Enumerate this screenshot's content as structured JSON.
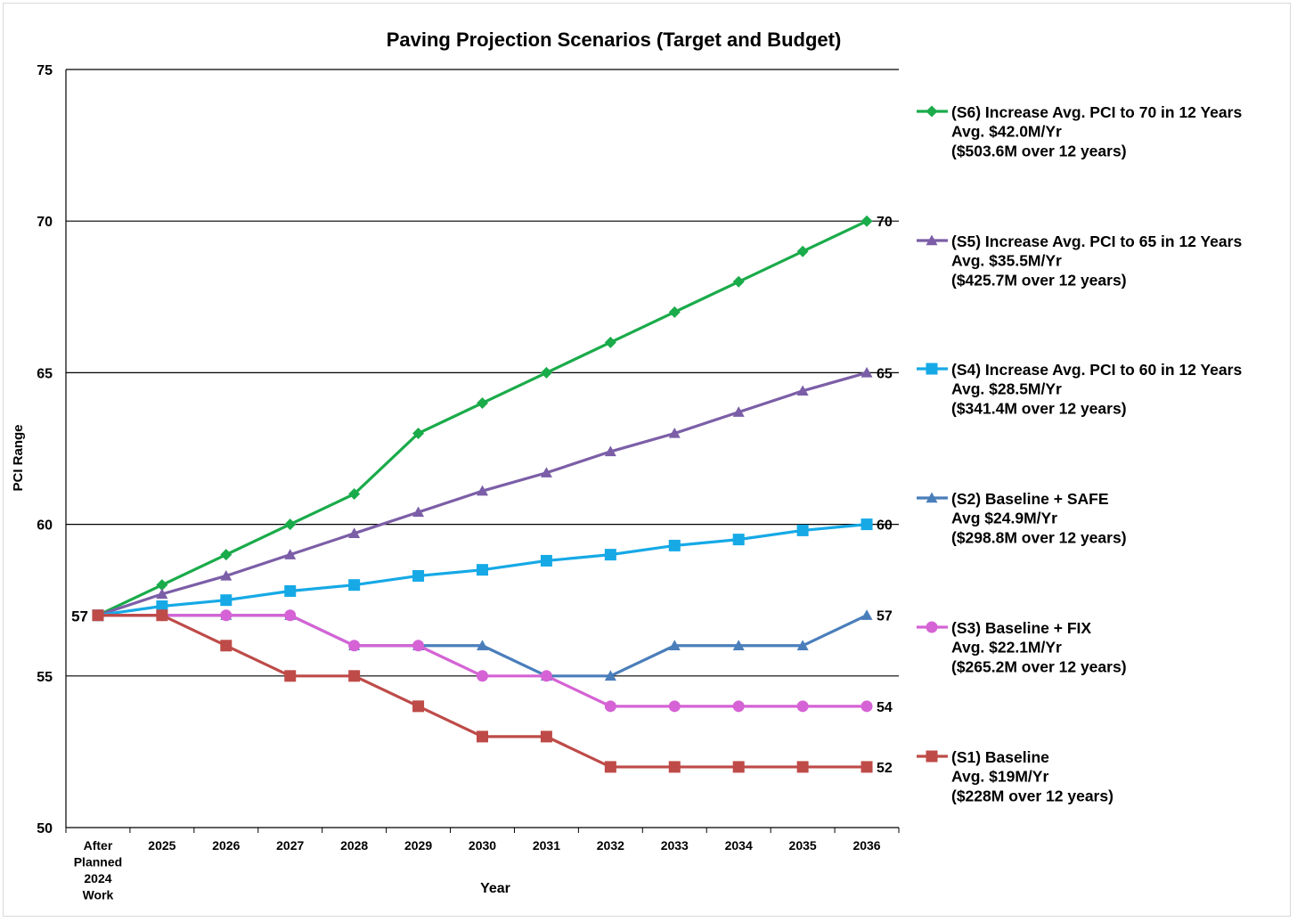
{
  "chart_data": {
    "type": "line",
    "title": "Paving Projection Scenarios (Target and Budget)",
    "xlabel": "Year",
    "ylabel": "PCI Range",
    "ylim": [
      50,
      75
    ],
    "yticks": [
      50,
      55,
      60,
      65,
      70,
      75
    ],
    "grid": true,
    "legend_position": "right",
    "categories": [
      [
        "After",
        "Planned",
        "2024",
        "Work"
      ],
      [
        "2025"
      ],
      [
        "2026"
      ],
      [
        "2027"
      ],
      [
        "2028"
      ],
      [
        "2029"
      ],
      [
        "2030"
      ],
      [
        "2031"
      ],
      [
        "2032"
      ],
      [
        "2033"
      ],
      [
        "2034"
      ],
      [
        "2035"
      ],
      [
        "2036"
      ]
    ],
    "series": [
      {
        "name": "S6",
        "legend": [
          "(S6) Increase Avg. PCI to 70 in 12 Years",
          "Avg. $42.0M/Yr",
          "($503.6M over 12 years)"
        ],
        "color": "#1aab4a",
        "marker": "diamond",
        "values": [
          57,
          58,
          59,
          60,
          61,
          63,
          64,
          65,
          66,
          67,
          68,
          69,
          70
        ],
        "end_label": "70"
      },
      {
        "name": "S5",
        "legend": [
          "(S5) Increase Avg. PCI to 65 in 12 Years",
          "Avg. $35.5M/Yr",
          "($425.7M over 12 years)"
        ],
        "color": "#7b5ea7",
        "marker": "triangle",
        "values": [
          57,
          57.7,
          58.3,
          59,
          59.7,
          60.4,
          61.1,
          61.7,
          62.4,
          63,
          63.7,
          64.4,
          65
        ],
        "end_label": "65"
      },
      {
        "name": "S4",
        "legend": [
          "(S4) Increase Avg. PCI to 60 in 12 Years",
          "Avg. $28.5M/Yr",
          "($341.4M over 12 years)"
        ],
        "color": "#16a9e6",
        "marker": "square",
        "values": [
          57,
          57.3,
          57.5,
          57.8,
          58,
          58.3,
          58.5,
          58.8,
          59,
          59.3,
          59.5,
          59.8,
          60
        ],
        "end_label": "60"
      },
      {
        "name": "S2",
        "legend": [
          "(S2) Baseline + SAFE",
          "Avg $24.9M/Yr",
          "($298.8M over 12 years)"
        ],
        "color": "#4a7ebb",
        "marker": "triangle",
        "values": [
          57,
          57,
          57,
          57,
          56,
          56,
          56,
          55,
          55,
          56,
          56,
          56,
          57
        ],
        "end_label": "57"
      },
      {
        "name": "S3",
        "legend": [
          "(S3) Baseline + FIX",
          "Avg. $22.1M/Yr",
          "($265.2M over 12 years)"
        ],
        "color": "#d563d5",
        "marker": "circle",
        "values": [
          57,
          57,
          57,
          57,
          56,
          56,
          55,
          55,
          54,
          54,
          54,
          54,
          54
        ],
        "end_label": "54"
      },
      {
        "name": "S1",
        "legend": [
          "(S1) Baseline",
          "Avg. $19M/Yr",
          "($228M over 12 years)"
        ],
        "color": "#be4b48",
        "marker": "square",
        "values": [
          57,
          57,
          56,
          55,
          55,
          54,
          53,
          53,
          52,
          52,
          52,
          52,
          52
        ],
        "end_label": "52"
      }
    ],
    "start_label": "57"
  }
}
